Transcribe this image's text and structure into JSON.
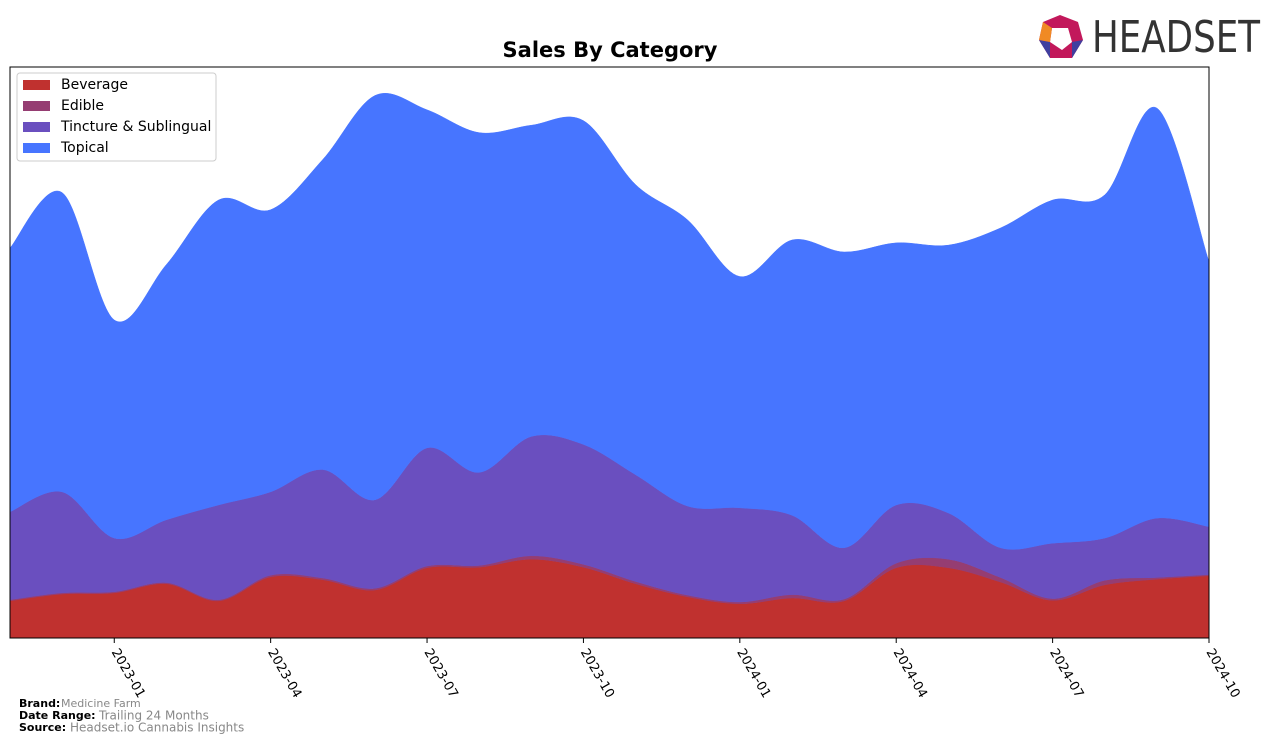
{
  "chart_data": {
    "type": "stacked-area",
    "title": "Sales By Category",
    "x": [
      "2022-11",
      "2022-12",
      "2023-01",
      "2023-02",
      "2023-03",
      "2023-04",
      "2023-05",
      "2023-06",
      "2023-07",
      "2023-08",
      "2023-09",
      "2023-10",
      "2023-11",
      "2023-12",
      "2024-01",
      "2024-02",
      "2024-03",
      "2024-04",
      "2024-05",
      "2024-06",
      "2024-07",
      "2024-08",
      "2024-09",
      "2024-10"
    ],
    "xlim": [
      "2022-11",
      "2024-10"
    ],
    "xticks": [
      "2023-01",
      "2023-04",
      "2023-07",
      "2023-10",
      "2024-01",
      "2024-04",
      "2024-07",
      "2024-10"
    ],
    "ylim": [
      0,
      100
    ],
    "legend": "upper left",
    "series": [
      {
        "name": "Beverage",
        "color": "#c0312f",
        "values": [
          6.5,
          7.7,
          7.9,
          9.5,
          6.5,
          10.7,
          10.2,
          8.4,
          12.3,
          12.4,
          13.8,
          12.4,
          9.5,
          7.2,
          6.0,
          7.0,
          6.5,
          12.3,
          12.3,
          9.8,
          6.6,
          9.3,
          10.3,
          10.9
        ]
      },
      {
        "name": "Edible",
        "color": "#953d72",
        "values": [
          0.2,
          0.2,
          0.2,
          0.2,
          0.2,
          0.3,
          0.3,
          0.3,
          0.3,
          0.3,
          0.6,
          0.5,
          0.4,
          0.3,
          0.3,
          0.6,
          0.3,
          0.8,
          1.5,
          0.8,
          0.3,
          0.8,
          0.3,
          0.2
        ]
      },
      {
        "name": "Tincture & Sublingual",
        "color": "#6a4fbf",
        "values": [
          15.4,
          17.7,
          9.4,
          11.0,
          16.6,
          14.6,
          19.0,
          15.5,
          20.7,
          16.3,
          20.9,
          21.0,
          18.7,
          15.6,
          16.5,
          13.9,
          9.0,
          10.2,
          8.1,
          5.2,
          9.7,
          7.4,
          10.4,
          8.4
        ]
      },
      {
        "name": "Topical",
        "color": "#4775ff",
        "values": [
          46.2,
          52.4,
          38.2,
          44.7,
          53.4,
          49.4,
          54.3,
          70.8,
          59.2,
          59.5,
          54.5,
          56.7,
          50.8,
          50.1,
          40.5,
          48.2,
          51.8,
          45.9,
          46.9,
          56.0,
          60.1,
          60.1,
          71.8,
          46.4
        ]
      }
    ]
  },
  "branding": {
    "logo": "HEADSET"
  },
  "footer": {
    "brand_label": "Brand:",
    "brand": "Medicine Farm",
    "date_range_label": "Date Range:",
    "date_range": "Trailing 24 Months",
    "source_label": "Source:",
    "source": "Headset.io Cannabis Insights"
  }
}
